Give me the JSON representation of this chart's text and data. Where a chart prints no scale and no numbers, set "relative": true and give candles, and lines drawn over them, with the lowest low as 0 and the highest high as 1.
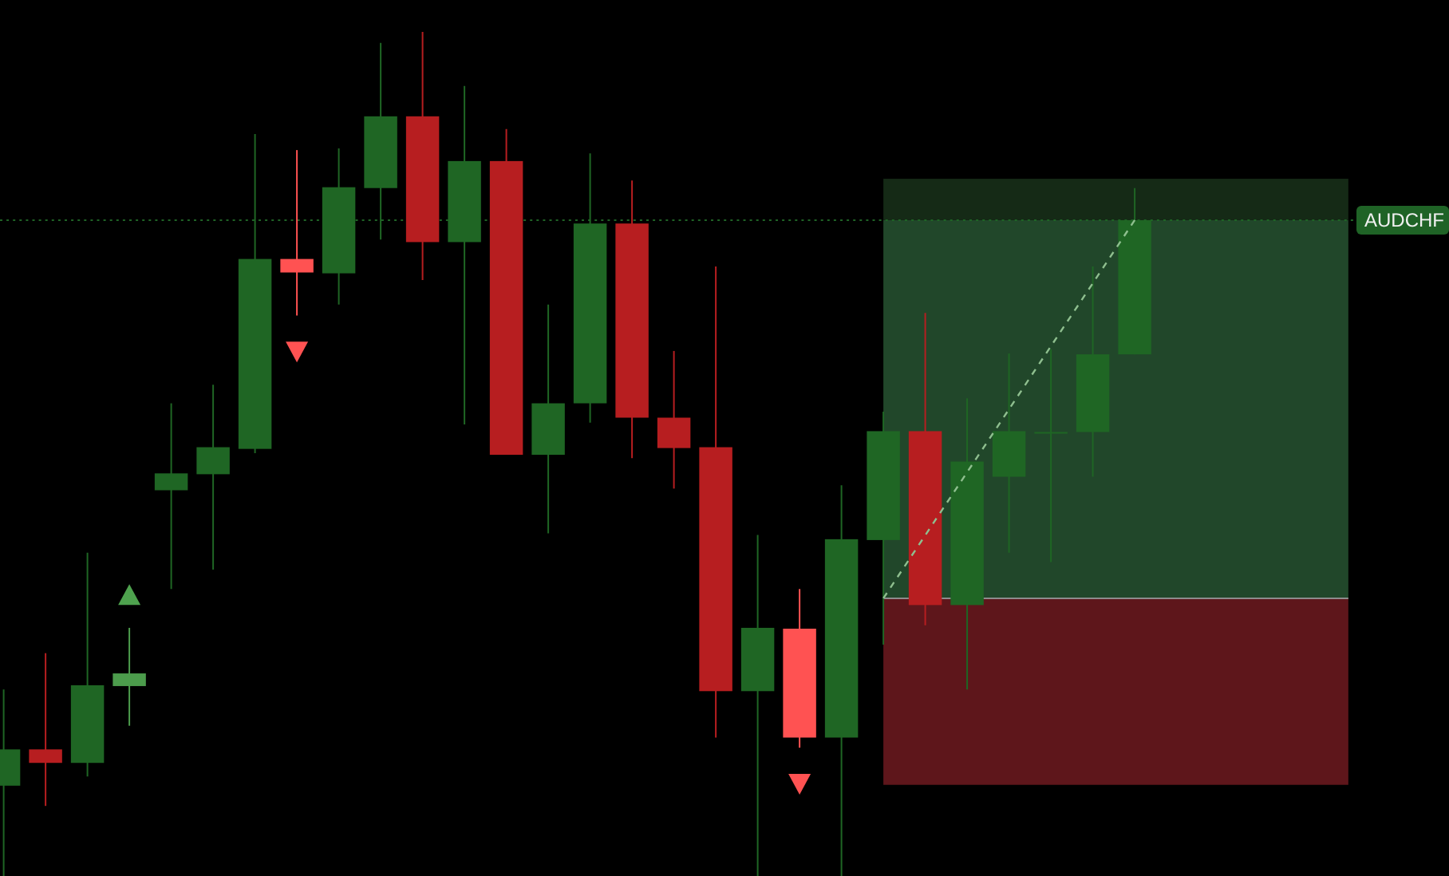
{
  "chart_data": {
    "type": "candlestick",
    "relative": true,
    "categories": [
      null,
      null,
      null,
      null,
      null,
      null,
      null,
      null,
      null,
      null,
      null,
      null,
      null,
      null,
      null,
      null,
      null,
      null,
      null,
      null,
      null,
      null,
      null,
      null,
      null,
      null,
      null,
      null
    ],
    "ohlc": [
      [
        0.107,
        0.221,
        0,
        0.15
      ],
      [
        0.15,
        0.264,
        0.083,
        0.134
      ],
      [
        0.134,
        0.383,
        0.118,
        0.226
      ],
      [
        0.225,
        0.294,
        0.178,
        0.24
      ],
      [
        0.457,
        0.56,
        0.34,
        0.477
      ],
      [
        0.476,
        0.582,
        0.363,
        0.508
      ],
      [
        0.506,
        0.879,
        0.501,
        0.731
      ],
      [
        0.731,
        0.86,
        0.664,
        0.715
      ],
      [
        0.714,
        0.862,
        0.677,
        0.816
      ],
      [
        0.815,
        0.987,
        0.754,
        0.9
      ],
      [
        0.9,
        1,
        0.706,
        0.751
      ],
      [
        0.751,
        0.936,
        0.535,
        0.847
      ],
      [
        0.847,
        0.885,
        0.499,
        0.499
      ],
      [
        0.499,
        0.677,
        0.406,
        0.56
      ],
      [
        0.56,
        0.856,
        0.537,
        0.773
      ],
      [
        0.773,
        0.824,
        0.495,
        0.543
      ],
      [
        0.543,
        0.622,
        0.459,
        0.507
      ],
      [
        0.508,
        0.722,
        0.164,
        0.219
      ],
      [
        0.219,
        0.404,
        0,
        0.294
      ],
      [
        0.293,
        0.34,
        0.152,
        0.164
      ],
      [
        0.164,
        0.463,
        0,
        0.399
      ],
      [
        0.398,
        0.55,
        0.274,
        0.527
      ],
      [
        0.527,
        0.667,
        0.297,
        0.321
      ],
      [
        0.321,
        0.566,
        0.221,
        0.491
      ],
      [
        0.473,
        0.619,
        0.383,
        0.527
      ],
      [
        0.526,
        0.624,
        0.372,
        0.526
      ],
      [
        0.526,
        0.722,
        0.473,
        0.618
      ],
      [
        0.618,
        0.815,
        0.618,
        0.777
      ]
    ],
    "colors": [
      "#1f6624",
      "#b71e20",
      "#1f6624",
      "#4c9c4c",
      "#1f6624",
      "#1f6624",
      "#1f6624",
      "#ff5252",
      "#1f6624",
      "#1f6624",
      "#b71e20",
      "#1f6624",
      "#b71e20",
      "#1f6624",
      "#1f6624",
      "#b71e20",
      "#b71e20",
      "#b71e20",
      "#1f6624",
      "#ff5252",
      "#1f6624",
      "#1f6624",
      "#b71e20",
      "#1f6624",
      "#1f6624",
      "#1f6624",
      "#1f6624",
      "#1f6624"
    ],
    "series": [
      {
        "type": "line",
        "color": "#8fbf8f",
        "line_style": "dashed",
        "values": [
          null,
          null,
          null,
          null,
          null,
          null,
          null,
          null,
          null,
          null,
          null,
          null,
          null,
          null,
          null,
          null,
          null,
          null,
          null,
          null,
          null,
          0.329,
          null,
          null,
          null,
          null,
          null,
          0.777
        ]
      }
    ],
    "bands": [
      {
        "axis": "y",
        "from": 0.108,
        "to": 0.329,
        "color": "#5e161b"
      },
      {
        "axis": "y",
        "from": 0.329,
        "to": 0.777,
        "color": "#21472a"
      },
      {
        "axis": "y",
        "from": 0.777,
        "to": 0.826,
        "color": "#152a16"
      }
    ],
    "ref_lines": [
      {
        "axis": "y",
        "value": 0.329,
        "color": "#8c8c8c"
      },
      {
        "axis": "y",
        "value": 0.777,
        "label": "AUDCHF",
        "color": "#1f6326",
        "line_style": "dotted"
      }
    ]
  }
}
